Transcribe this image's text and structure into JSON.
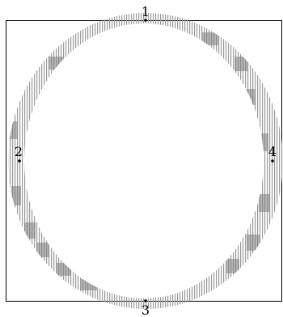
{
  "colors": {
    "frame": "#000000",
    "hatch": "#9a9a9a",
    "background": "#ffffff",
    "point": "#000000"
  },
  "fill_pattern": "vertical-hatch",
  "points": [
    {
      "id": "p1",
      "label": "1"
    },
    {
      "id": "p2",
      "label": "2"
    },
    {
      "id": "p3",
      "label": "3"
    },
    {
      "id": "p4",
      "label": "4"
    }
  ]
}
